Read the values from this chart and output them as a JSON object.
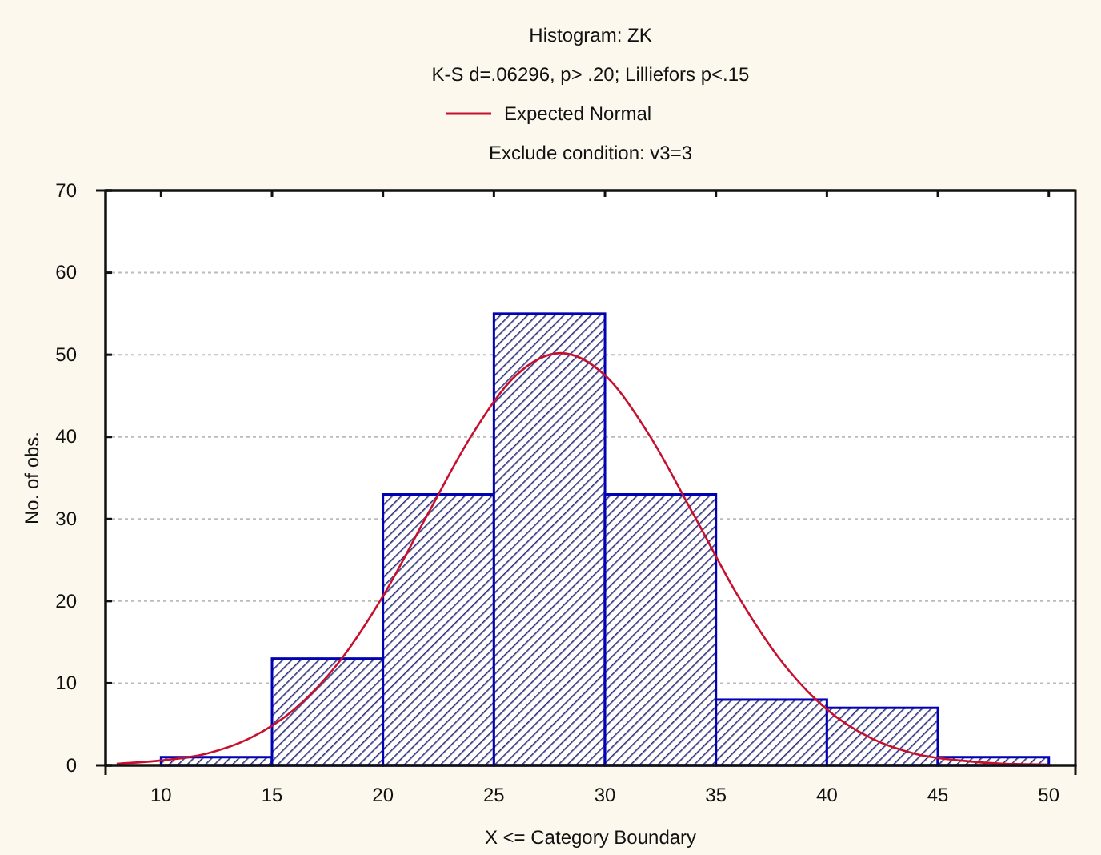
{
  "chart_data": {
    "type": "histogram",
    "title": "Histogram: ZK",
    "subtitle": "K-S d=.06296, p> .20; Lilliefors p<.15",
    "annotations": [
      "Exclude condition: v3=3"
    ],
    "xlabel": "X <= Category Boundary",
    "ylabel": "No. of obs.",
    "bins": [
      10,
      15,
      20,
      25,
      30,
      35,
      40,
      45,
      50
    ],
    "series": [
      {
        "color": "#0000b4",
        "values": [
          1,
          13,
          33,
          55,
          33,
          8,
          7,
          1
        ]
      },
      {
        "type": "line",
        "name": "Expected Normal",
        "color": "#c8102e",
        "x": [
          8,
          10,
          12,
          14,
          16,
          18,
          20,
          22,
          24,
          26,
          28,
          30,
          32,
          34,
          36,
          38,
          40,
          42,
          44,
          46,
          48,
          50
        ],
        "values": [
          0.2,
          0.6,
          1.4,
          3.3,
          6.8,
          12.5,
          20.6,
          30.5,
          40.2,
          47.5,
          50.2,
          47.5,
          40.2,
          30.5,
          20.6,
          12.5,
          6.8,
          3.3,
          1.4,
          0.6,
          0.2,
          0.1
        ]
      }
    ],
    "xlim": [
      7.5,
      51.2
    ],
    "xticks": [
      10,
      15,
      20,
      25,
      30,
      35,
      40,
      45,
      50
    ],
    "ylim": [
      0,
      70
    ],
    "yticks": [
      0,
      10,
      20,
      30,
      40,
      50,
      60,
      70
    ],
    "grid": "y",
    "legend": "top"
  }
}
